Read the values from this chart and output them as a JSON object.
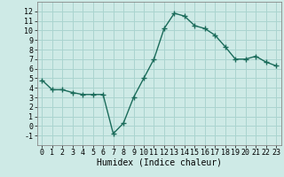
{
  "x": [
    0,
    1,
    2,
    3,
    4,
    5,
    6,
    7,
    8,
    9,
    10,
    11,
    12,
    13,
    14,
    15,
    16,
    17,
    18,
    19,
    20,
    21,
    22,
    23
  ],
  "y": [
    4.8,
    3.8,
    3.8,
    3.5,
    3.3,
    3.3,
    3.3,
    -0.8,
    0.3,
    3.0,
    5.0,
    7.0,
    10.2,
    11.8,
    11.5,
    10.5,
    10.2,
    9.5,
    8.3,
    7.0,
    7.0,
    7.3,
    6.7,
    6.3
  ],
  "line_color": "#1a6b5a",
  "marker": "+",
  "marker_size": 4,
  "line_width": 1.0,
  "bg_color": "#ceeae6",
  "grid_color": "#aad4cf",
  "xlabel": "Humidex (Indice chaleur)",
  "xlabel_fontsize": 7,
  "tick_fontsize": 6,
  "ylim": [
    -2,
    13
  ],
  "xlim": [
    -0.5,
    23.5
  ],
  "yticks": [
    -1,
    0,
    1,
    2,
    3,
    4,
    5,
    6,
    7,
    8,
    9,
    10,
    11,
    12
  ],
  "xticks": [
    0,
    1,
    2,
    3,
    4,
    5,
    6,
    7,
    8,
    9,
    10,
    11,
    12,
    13,
    14,
    15,
    16,
    17,
    18,
    19,
    20,
    21,
    22,
    23
  ]
}
